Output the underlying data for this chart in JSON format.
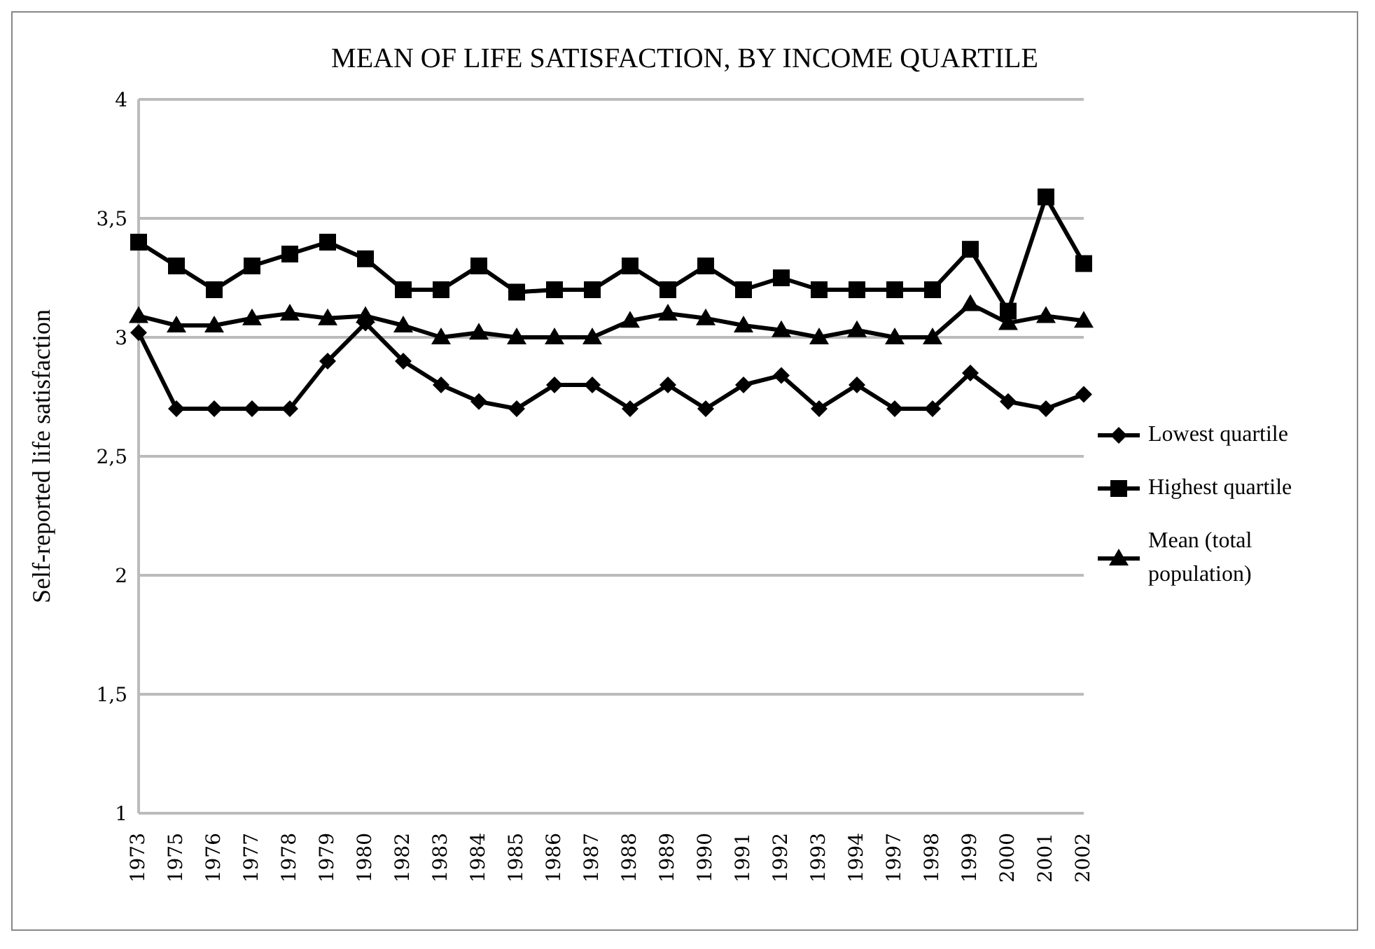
{
  "chart_data": {
    "type": "line",
    "title": "MEAN OF LIFE SATISFACTION, BY INCOME QUARTILE",
    "ylabel": "Self-reported life satisfaction",
    "categories": [
      "1973",
      "1975",
      "1976",
      "1977",
      "1978",
      "1979",
      "1980",
      "1982",
      "1983",
      "1984",
      "1985",
      "1986",
      "1987",
      "1988",
      "1989",
      "1990",
      "1991",
      "1992",
      "1993",
      "1994",
      "1997",
      "1998",
      "1999",
      "2000",
      "2001",
      "2002"
    ],
    "series": [
      {
        "name": "Lowest quartile",
        "color": "#000000",
        "marker": "diamond",
        "values": [
          3.02,
          2.7,
          2.7,
          2.7,
          2.7,
          2.9,
          3.06,
          2.9,
          2.8,
          2.73,
          2.7,
          2.8,
          2.8,
          2.7,
          2.8,
          2.7,
          2.8,
          2.84,
          2.7,
          2.8,
          2.7,
          2.7,
          2.85,
          2.73,
          2.7,
          2.76
        ]
      },
      {
        "name": "Highest quartile",
        "color": "#000000",
        "marker": "square",
        "values": [
          3.4,
          3.3,
          3.2,
          3.3,
          3.35,
          3.4,
          3.33,
          3.2,
          3.2,
          3.3,
          3.19,
          3.2,
          3.2,
          3.3,
          3.2,
          3.3,
          3.2,
          3.25,
          3.2,
          3.2,
          3.2,
          3.2,
          3.37,
          3.11,
          3.59,
          3.31
        ]
      },
      {
        "name": "Mean (total population)",
        "color": "#000000",
        "marker": "triangle",
        "values": [
          3.09,
          3.05,
          3.05,
          3.08,
          3.1,
          3.08,
          3.09,
          3.05,
          3.0,
          3.02,
          3.0,
          3.0,
          3.0,
          3.07,
          3.1,
          3.08,
          3.05,
          3.03,
          3.0,
          3.03,
          3.0,
          3.0,
          3.14,
          3.06,
          3.09,
          3.07
        ]
      }
    ],
    "ylim": [
      1,
      4
    ],
    "yticks": [
      1,
      {
        "value": 1.5,
        "label": "1,5"
      },
      2,
      {
        "value": 2.5,
        "label": "2,5"
      },
      3,
      {
        "value": 3.5,
        "label": "3,5"
      },
      4
    ],
    "grid": "y",
    "legend": "right",
    "line_style": "solid"
  }
}
